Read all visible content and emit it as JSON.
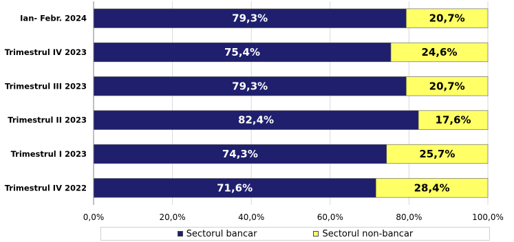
{
  "colors": {
    "bank": "#1f1f6e",
    "nonbank": "#ffff66",
    "grid": "#d9d9d9",
    "axis": "#7f7f7f"
  },
  "chart_data": {
    "type": "bar",
    "orientation": "horizontal",
    "stacked": true,
    "categories": [
      "Ian- Febr. 2024",
      "Trimestrul IV 2023",
      "Trimestrul III 2023",
      "Trimestrul II 2023",
      "Trimestrul I 2023",
      "Trimestrul IV 2022"
    ],
    "series": [
      {
        "name": "Sectorul bancar",
        "values": [
          79.3,
          75.4,
          79.3,
          82.4,
          74.3,
          71.6
        ],
        "labels": [
          "79,3%",
          "75,4%",
          "79,3%",
          "82,4%",
          "74,3%",
          "71,6%"
        ]
      },
      {
        "name": "Sectorul non-bancar",
        "values": [
          20.7,
          24.6,
          20.7,
          17.6,
          25.7,
          28.4
        ],
        "labels": [
          "20,7%",
          "24,6%",
          "20,7%",
          "17,6%",
          "25,7%",
          "28,4%"
        ]
      }
    ],
    "xlim": [
      0,
      100
    ],
    "x_ticks": [
      0,
      20,
      40,
      60,
      80,
      100
    ],
    "x_tick_labels": [
      "0,0%",
      "20,0%",
      "40,0%",
      "60,0%",
      "80,0%",
      "100,0%"
    ],
    "grid": true,
    "legend_position": "bottom"
  }
}
